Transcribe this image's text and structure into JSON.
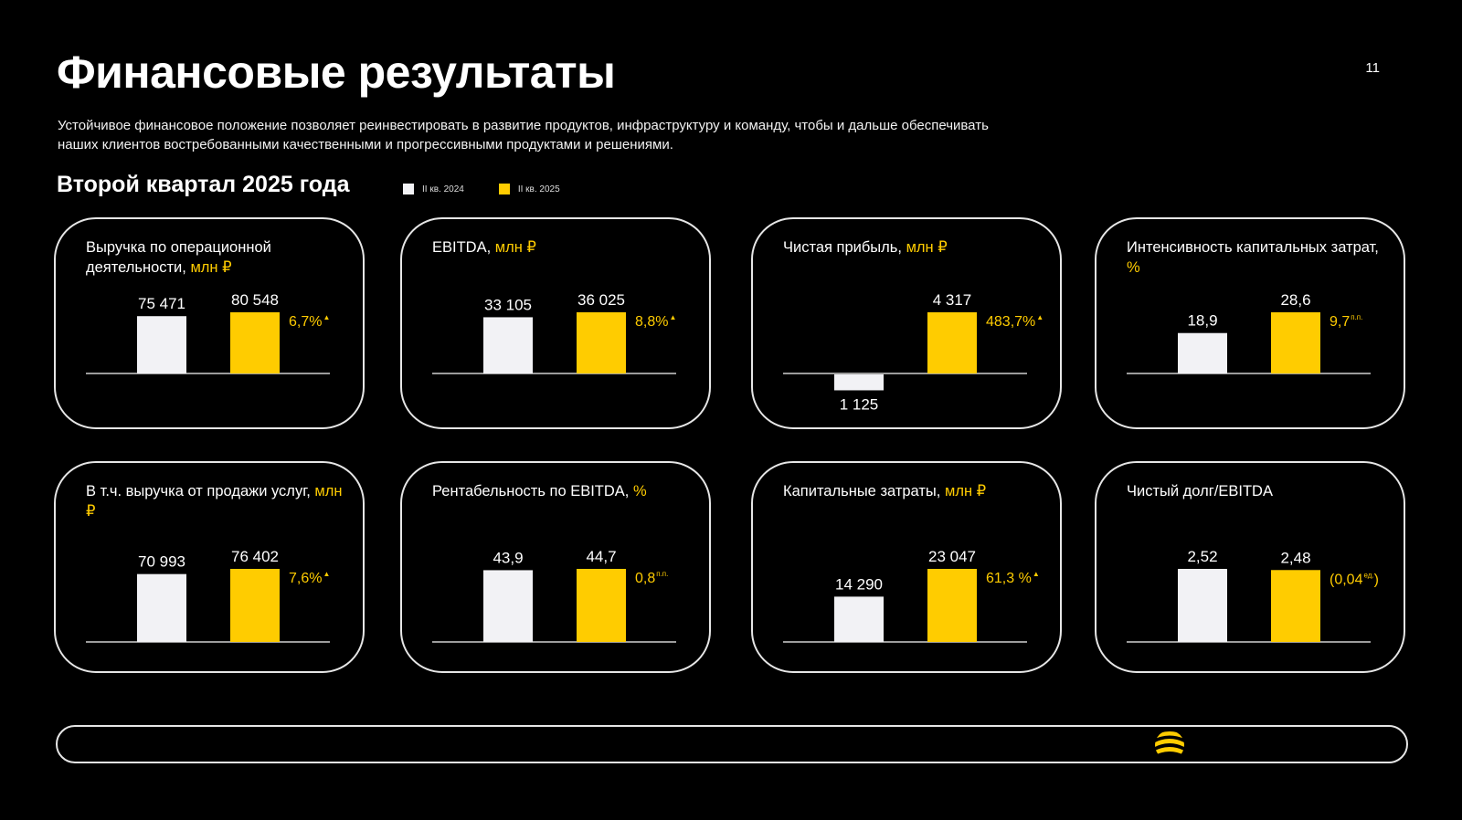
{
  "title": "Финансовые результаты",
  "page_number": "11",
  "subtitle": "Устойчивое финансовое положение позволяет реинвестировать в развитие продуктов, инфраструктуру и команду, чтобы и дальше обеспечивать наших клиентов востребованными качественными и прогрессивными продуктами и решениями.",
  "section_title": "Второй квартал 2025 года",
  "colors": {
    "prev": "#f2f2f5",
    "curr": "#ffcc00",
    "background": "#000000"
  },
  "legend": [
    {
      "label": "II кв. 2024",
      "color": "#f2f2f5"
    },
    {
      "label": "II кв. 2025",
      "color": "#ffcc00"
    }
  ],
  "cards": [
    {
      "label": "Выручка по операционной деятельности, ",
      "unit": "млн ₽"
    },
    {
      "label": "EBITDA, ",
      "unit": "млн ₽"
    },
    {
      "label": "Чистая прибыль, ",
      "unit": "млн ₽"
    },
    {
      "label": "Интенсивность капитальных затрат, ",
      "unit": "%"
    },
    {
      "label": "В т.ч. выручка от продажи услуг, ",
      "unit": "млн ₽"
    },
    {
      "label": "Рентабельность по EBITDA, ",
      "unit": "%"
    },
    {
      "label": "Капитальные затраты, ",
      "unit": "млн ₽"
    },
    {
      "label": "Чистый долг/EBITDA",
      "unit": ""
    }
  ],
  "chart_data": [
    {
      "type": "bar",
      "categories": [
        "II кв. 2024",
        "II кв. 2025"
      ],
      "values": [
        75471,
        80548
      ],
      "value_labels": [
        "75 471",
        "80 548"
      ],
      "change": "6,7%",
      "change_suffix": "▲"
    },
    {
      "type": "bar",
      "categories": [
        "II кв. 2024",
        "II кв. 2025"
      ],
      "values": [
        33105,
        36025
      ],
      "value_labels": [
        "33 105",
        "36 025"
      ],
      "change": "8,8%",
      "change_suffix": "▲"
    },
    {
      "type": "bar",
      "categories": [
        "II кв. 2024",
        "II кв. 2025"
      ],
      "values": [
        -1125,
        4317
      ],
      "value_labels": [
        "1 125",
        "4 317"
      ],
      "change": "483,7%",
      "change_suffix": "▲"
    },
    {
      "type": "bar",
      "categories": [
        "II кв. 2024",
        "II кв. 2025"
      ],
      "values": [
        18.9,
        28.6
      ],
      "value_labels": [
        "18,9",
        "28,6"
      ],
      "change": "9,7",
      "change_suffix": "п.п."
    },
    {
      "type": "bar",
      "categories": [
        "II кв. 2024",
        "II кв. 2025"
      ],
      "values": [
        70993,
        76402
      ],
      "value_labels": [
        "70 993",
        "76 402"
      ],
      "change": "7,6%",
      "change_suffix": "▲"
    },
    {
      "type": "bar",
      "categories": [
        "II кв. 2024",
        "II кв. 2025"
      ],
      "values": [
        43.9,
        44.7
      ],
      "value_labels": [
        "43,9",
        "44,7"
      ],
      "change": "0,8",
      "change_suffix": "п.п."
    },
    {
      "type": "bar",
      "categories": [
        "II кв. 2024",
        "II кв. 2025"
      ],
      "values": [
        14290,
        23047
      ],
      "value_labels": [
        "14 290",
        "23 047"
      ],
      "change": "61,3 %",
      "change_suffix": "▲"
    },
    {
      "type": "bar",
      "categories": [
        "II кв. 2024",
        "II кв. 2025"
      ],
      "values": [
        2.52,
        2.48
      ],
      "value_labels": [
        "2,52",
        "2,48"
      ],
      "change": "(0,04",
      "change_suffix": "ед.",
      "change_close": ")"
    }
  ]
}
